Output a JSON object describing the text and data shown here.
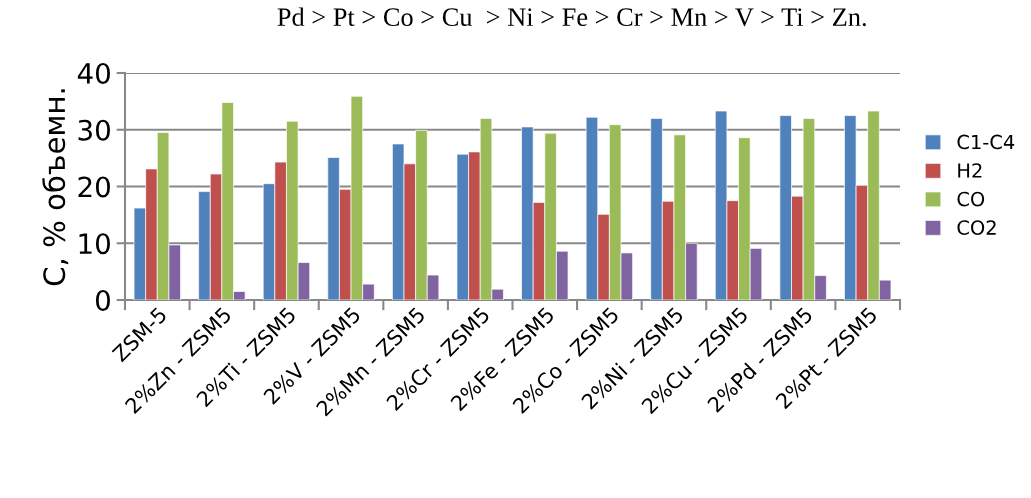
{
  "chart_data": {
    "type": "bar",
    "title": "Pd > Pt > Co > Cu  > Ni > Fe > Cr > Mn > V > Ti > Zn.",
    "ylabel": "С, % объемн.",
    "categories": [
      "ZSM-5",
      "2%Zn - ZSM5",
      "2%Ti - ZSM5",
      "2%V - ZSM5",
      "2%Mn - ZSM5",
      "2%Cr - ZSM5",
      "2%Fe - ZSM5",
      "2%Co - ZSM5",
      "2%Ni - ZSM5",
      "2%Cu - ZSM5",
      "2%Pd - ZSM5",
      "2%Pt - ZSM5"
    ],
    "series": [
      {
        "name": "C1-C4",
        "color": "#4f81bd",
        "values": [
          16.2,
          19.1,
          20.5,
          25.1,
          27.5,
          25.7,
          30.5,
          32.2,
          32.0,
          33.3,
          32.5,
          32.5
        ]
      },
      {
        "name": "H2",
        "color": "#c0504d",
        "values": [
          23.1,
          22.2,
          24.3,
          19.5,
          24.0,
          26.1,
          17.2,
          15.1,
          17.4,
          17.5,
          18.3,
          20.2
        ]
      },
      {
        "name": "CO",
        "color": "#9bbb59",
        "values": [
          29.5,
          34.8,
          31.5,
          35.9,
          29.9,
          32.0,
          29.4,
          30.9,
          29.1,
          28.6,
          32.0,
          33.3
        ]
      },
      {
        "name": "CO2",
        "color": "#8064a2",
        "values": [
          9.7,
          1.5,
          6.6,
          2.8,
          4.4,
          1.9,
          8.6,
          8.3,
          10.0,
          9.1,
          4.3,
          3.5
        ]
      }
    ],
    "ylim": [
      0,
      40
    ],
    "yticks": [
      0,
      10,
      20,
      30,
      40
    ],
    "grid": "y",
    "legend": "right"
  }
}
